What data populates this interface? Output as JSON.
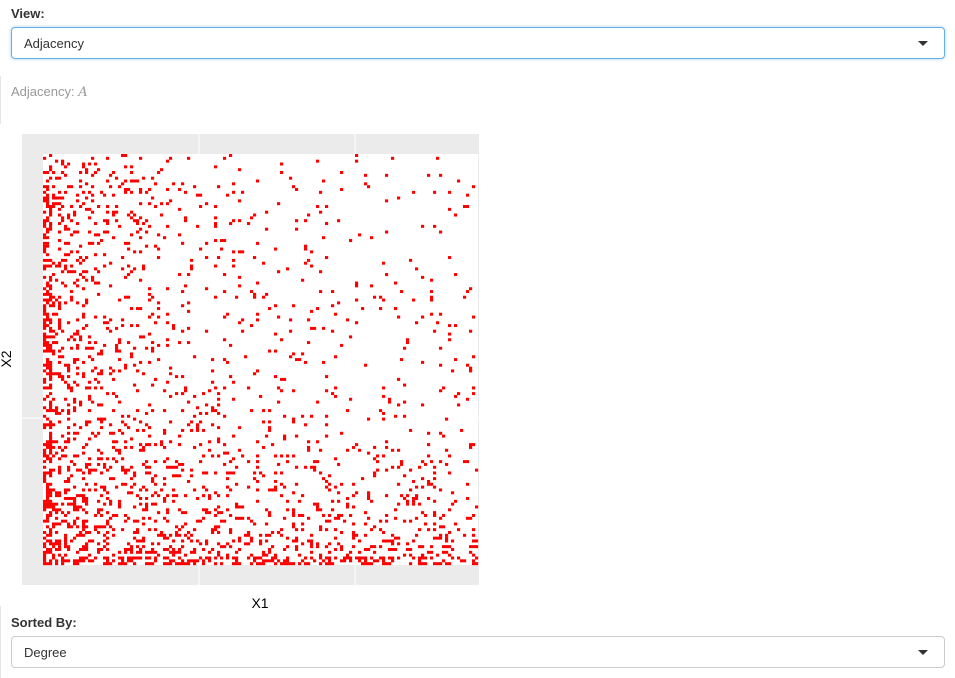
{
  "view_control": {
    "label": "View:",
    "selected": "Adjacency"
  },
  "caption": {
    "prefix": "Adjacency:",
    "symbol": "A"
  },
  "chart_data": {
    "type": "heatmap",
    "title": "",
    "xlabel": "X1",
    "ylabel": "X2",
    "tick_labels_visible": false,
    "grid": true,
    "panel_background": "#ebebeb",
    "fill_color": "#ff0000",
    "density": "edges concentrated toward low X1 and low X2 (rows/columns sorted by degree)"
  },
  "sort_control": {
    "label": "Sorted By:",
    "selected": "Degree"
  }
}
